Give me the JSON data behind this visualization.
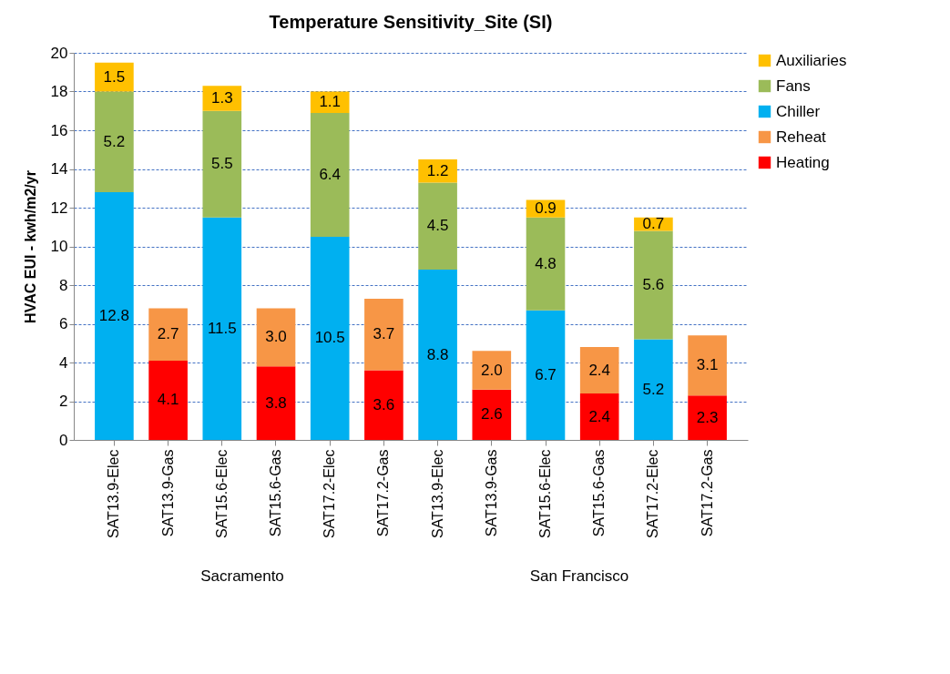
{
  "chart_data": {
    "type": "bar",
    "title": "Temperature Sensitivity_Site  (SI)",
    "ylabel": "HVAC EUI - kwh/m2/yr",
    "categories": [
      "SAT13.9-Elec",
      "SAT13.9-Gas",
      "SAT15.6-Elec",
      "SAT15.6-Gas",
      "SAT17.2-Elec",
      "SAT17.2-Gas",
      "SAT13.9-Elec",
      "SAT13.9-Gas",
      "SAT15.6-Elec",
      "SAT15.6-Gas",
      "SAT17.2-Elec",
      "SAT17.2-Gas"
    ],
    "series": [
      {
        "name": "Heating",
        "color": "#ff0000",
        "values": [
          null,
          4.1,
          null,
          3.8,
          null,
          3.6,
          null,
          2.6,
          null,
          2.4,
          null,
          2.3
        ],
        "value_labels": [
          null,
          "4.1",
          null,
          "3.8",
          null,
          "3.6",
          null,
          "2.6",
          null,
          "2.4",
          null,
          "2.3"
        ]
      },
      {
        "name": "Reheat",
        "color": "#f79646",
        "values": [
          null,
          2.7,
          null,
          3.0,
          null,
          3.7,
          null,
          2.0,
          null,
          2.4,
          null,
          3.1
        ],
        "value_labels": [
          null,
          "2.7",
          null,
          "3.0",
          null,
          "3.7",
          null,
          "2.0",
          null,
          "2.4",
          null,
          "3.1"
        ]
      },
      {
        "name": "Chiller",
        "color": "#00b0f0",
        "values": [
          12.8,
          null,
          11.5,
          null,
          10.5,
          null,
          8.8,
          null,
          6.7,
          null,
          5.2,
          null
        ],
        "value_labels": [
          "12.8",
          null,
          "11.5",
          null,
          "10.5",
          null,
          "8.8",
          null,
          "6.7",
          null,
          "5.2",
          null
        ]
      },
      {
        "name": "Fans",
        "color": "#9bbb59",
        "values": [
          5.2,
          null,
          5.5,
          null,
          6.4,
          null,
          4.5,
          null,
          4.8,
          null,
          5.6,
          null
        ],
        "value_labels": [
          "5.2",
          null,
          "5.5",
          null,
          "6.4",
          null,
          "4.5",
          null,
          "4.8",
          null,
          "5.6",
          null
        ]
      },
      {
        "name": "Auxiliaries",
        "color": "#ffc000",
        "values": [
          1.5,
          null,
          1.3,
          null,
          1.1,
          null,
          1.2,
          null,
          0.9,
          null,
          0.7,
          null
        ],
        "value_labels": [
          "1.5",
          null,
          "1.3",
          null,
          "1.1",
          null,
          "1.2",
          null,
          "0.9",
          null,
          "0.7",
          null
        ]
      }
    ],
    "stacked": true,
    "ylim": [
      0,
      20
    ],
    "yticks": [
      0,
      2,
      4,
      6,
      8,
      10,
      12,
      14,
      16,
      18,
      20
    ],
    "grid": "y",
    "legend": "right",
    "annotations": [
      "Sacramento",
      "San Francisco"
    ]
  }
}
